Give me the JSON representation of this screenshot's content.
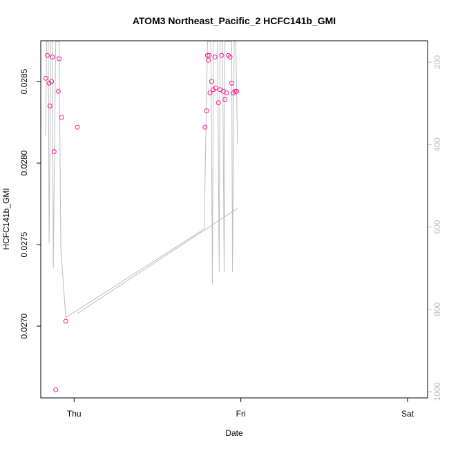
{
  "chart_data": {
    "type": "scatter",
    "title": "ATOM3 Northeast_Pacific_2 HCFC141b_GMI",
    "xlabel": "Date",
    "ylabel": "HCFC141b_GMI",
    "x_ticks": [
      "Thu",
      "Fri",
      "Sat"
    ],
    "x_tick_values": [
      0,
      1,
      2
    ],
    "xlim": [
      -0.2,
      2.12
    ],
    "ylim": [
      0.02656,
      0.02875
    ],
    "y_ticks": [
      0.027,
      0.0275,
      0.028,
      0.0285
    ],
    "y_tick_labels": [
      "0.0270",
      "0.0275",
      "0.0280",
      "0.0285"
    ],
    "y2_ticks": [
      200,
      400,
      600,
      800,
      1000
    ],
    "y2_tick_labels": [
      "200",
      "400",
      "600",
      "800",
      "1000"
    ],
    "y2lim": [
      1015,
      148
    ],
    "colors": {
      "points": "#ff1493",
      "line": "#bebebe",
      "axis": "#000000",
      "right_axis": "#bebebe"
    },
    "series": [
      {
        "type": "points",
        "x": [
          -0.17,
          -0.16,
          -0.15,
          -0.145,
          -0.135,
          -0.13,
          -0.12,
          -0.11,
          -0.095,
          -0.09,
          -0.075,
          -0.05,
          0.02,
          0.785,
          0.795,
          0.8,
          0.805,
          0.81,
          0.815,
          0.825,
          0.835,
          0.845,
          0.85,
          0.865,
          0.875,
          0.885,
          0.895,
          0.905,
          0.915,
          0.925,
          0.935,
          0.945,
          0.955,
          0.965,
          0.975
        ],
        "y": [
          0.02852,
          0.02866,
          0.02849,
          0.02835,
          0.0285,
          0.02865,
          0.02807,
          0.02661,
          0.02844,
          0.02864,
          0.02828,
          0.02703,
          0.02822,
          0.02822,
          0.02832,
          0.02866,
          0.02863,
          0.02866,
          0.02843,
          0.0285,
          0.02845,
          0.02865,
          0.02846,
          0.02837,
          0.02845,
          0.02866,
          0.02844,
          0.02839,
          0.02843,
          0.02866,
          0.02865,
          0.02849,
          0.02843,
          0.02844,
          0.02844
        ]
      },
      {
        "type": "line",
        "name": "",
        "x": [
          -0.17,
          -0.165,
          -0.155,
          -0.15,
          -0.14,
          -0.13,
          -0.125,
          -0.11,
          -0.1,
          -0.09,
          -0.08,
          -0.05,
          0.78,
          0.8,
          0.805,
          0.81,
          0.815,
          0.82,
          0.83,
          0.835,
          0.845,
          0.86,
          0.87,
          0.875,
          0.88,
          0.89,
          0.9,
          0.905,
          0.91,
          0.92,
          0.93,
          0.935,
          0.94,
          0.945,
          0.95,
          0.96,
          0.97,
          0.98
        ],
        "y2": [
          380,
          150,
          150,
          640,
          150,
          150,
          700,
          150,
          150,
          150,
          650,
          820,
          605,
          150,
          150,
          150,
          150,
          150,
          740,
          150,
          150,
          150,
          710,
          150,
          150,
          150,
          710,
          150,
          150,
          150,
          150,
          150,
          150,
          150,
          710,
          150,
          150,
          400
        ]
      },
      {
        "type": "line",
        "name": "",
        "x": [
          0.02,
          0.98
        ],
        "y2": [
          810,
          555
        ]
      }
    ]
  }
}
